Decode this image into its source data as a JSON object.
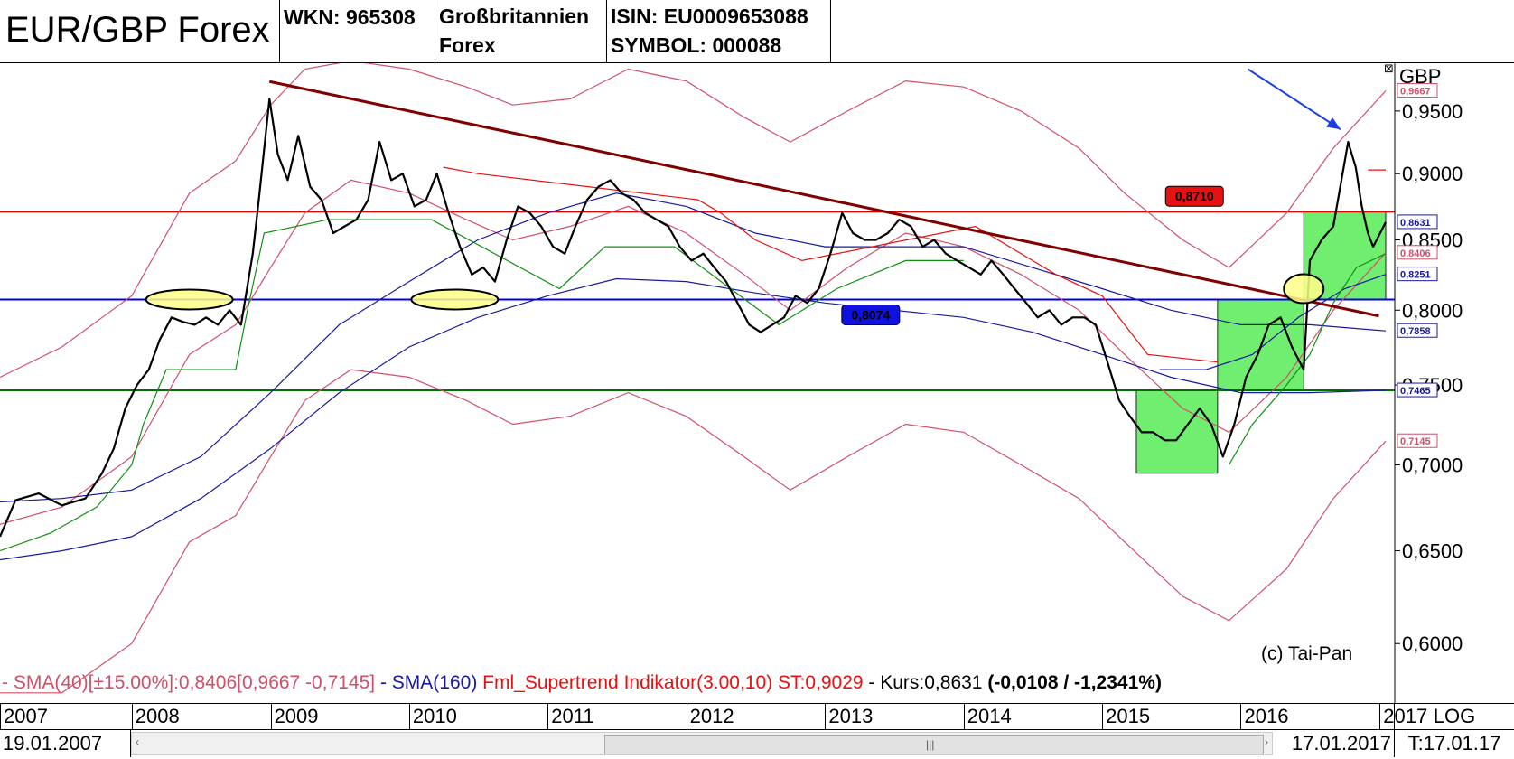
{
  "header": {
    "title": "EUR/GBP Forex",
    "wkn": "WKN: 965308",
    "market_line1": "Großbritannien",
    "market_line2": "Forex",
    "isin": "ISIN: EU0009653088",
    "symbol": "SYMBOL: 000088"
  },
  "axis": {
    "currency": "GBP",
    "log_label": "LOG",
    "close_box": "⊠"
  },
  "copyright": "(c) Tai-Pan",
  "legend": {
    "sma40": "- SMA(40)[±15.00%]:0,8406[0,9667 -0,7145]",
    "sma160": " - SMA(160)",
    "supertrend": " Fml_Supertrend Indikator(3.00,10) ST:0,9029",
    "kurs": " - Kurs:0,8631 ",
    "change": "(-0,0108 / -1,2341%)"
  },
  "footer": {
    "start_date": "19.01.2007",
    "end_date": "17.01.2017",
    "t_date": "T:17.01.17",
    "grip": "|||",
    "left_arrow": "‹",
    "right_arrow": "›"
  },
  "colors": {
    "sma40": "#d0506a",
    "sma160": "#1a1aa0",
    "supertrend_red": "#e81010",
    "supertrend_green": "#109010",
    "resistance": "#e00000",
    "support_blue": "#0000e0",
    "support_green": "#007000",
    "trendline": "#800000",
    "zone": "#70ee70",
    "ellipse": "#ffff88",
    "arrow": "#1c3cf0"
  },
  "chart_data": {
    "type": "line",
    "scale": "log",
    "ylim": [
      0.57,
      0.99
    ],
    "x_range": [
      "2007-01-19",
      "2017-01-17"
    ],
    "x_ticks": [
      "2007",
      "2008",
      "2009",
      "2010",
      "2011",
      "2012",
      "2013",
      "2014",
      "2015",
      "2016",
      "2017"
    ],
    "y_ticks": [
      "0,9500",
      "0,9000",
      "0,8500",
      "0,8000",
      "0,7500",
      "0,7000",
      "0,6500",
      "0,6000"
    ],
    "y_tick_values": [
      0.95,
      0.9,
      0.85,
      0.8,
      0.75,
      0.7,
      0.65,
      0.6
    ],
    "price_labels": [
      {
        "text": "0,9667",
        "value": 0.9667,
        "color": "#d0506a"
      },
      {
        "text": "0,8631",
        "value": 0.8631,
        "color": "#1a1aa0"
      },
      {
        "text": "0,8406",
        "value": 0.8406,
        "color": "#d0506a"
      },
      {
        "text": "0,8251",
        "value": 0.8251,
        "color": "#1a1aa0"
      },
      {
        "text": "0,7858",
        "value": 0.7858,
        "color": "#1a1aa0"
      },
      {
        "text": "0,7465",
        "value": 0.7465,
        "color": "#1a1aa0"
      },
      {
        "text": "0,7145",
        "value": 0.7145,
        "color": "#d0506a"
      }
    ],
    "levels": [
      {
        "name": "resistance",
        "value": 0.871,
        "label": "0,8710"
      },
      {
        "name": "support",
        "value": 0.8074,
        "label": "0,8074"
      },
      {
        "name": "support-low",
        "value": 0.7465
      }
    ],
    "trendline": [
      [
        "2008-12-29",
        0.9745
      ],
      [
        "2016-12-30",
        0.796
      ]
    ],
    "price": [
      [
        "2007-01-19",
        0.658
      ],
      [
        "2007-03-01",
        0.679
      ],
      [
        "2007-05-01",
        0.683
      ],
      [
        "2007-07-01",
        0.676
      ],
      [
        "2007-09-01",
        0.68
      ],
      [
        "2007-10-15",
        0.695
      ],
      [
        "2007-11-15",
        0.71
      ],
      [
        "2007-12-15",
        0.735
      ],
      [
        "2008-01-15",
        0.75
      ],
      [
        "2008-02-15",
        0.76
      ],
      [
        "2008-03-15",
        0.78
      ],
      [
        "2008-04-15",
        0.795
      ],
      [
        "2008-05-15",
        0.792
      ],
      [
        "2008-06-15",
        0.79
      ],
      [
        "2008-07-15",
        0.795
      ],
      [
        "2008-08-15",
        0.79
      ],
      [
        "2008-09-15",
        0.8
      ],
      [
        "2008-10-15",
        0.79
      ],
      [
        "2008-11-15",
        0.84
      ],
      [
        "2008-12-01",
        0.88
      ],
      [
        "2008-12-29",
        0.96
      ],
      [
        "2009-01-20",
        0.915
      ],
      [
        "2009-02-15",
        0.895
      ],
      [
        "2009-03-15",
        0.93
      ],
      [
        "2009-04-15",
        0.89
      ],
      [
        "2009-05-15",
        0.88
      ],
      [
        "2009-06-15",
        0.855
      ],
      [
        "2009-07-15",
        0.86
      ],
      [
        "2009-08-15",
        0.865
      ],
      [
        "2009-09-15",
        0.88
      ],
      [
        "2009-10-15",
        0.925
      ],
      [
        "2009-11-15",
        0.895
      ],
      [
        "2009-12-15",
        0.9
      ],
      [
        "2010-01-15",
        0.875
      ],
      [
        "2010-02-15",
        0.88
      ],
      [
        "2010-03-15",
        0.9
      ],
      [
        "2010-04-15",
        0.87
      ],
      [
        "2010-05-15",
        0.845
      ],
      [
        "2010-06-15",
        0.825
      ],
      [
        "2010-07-15",
        0.83
      ],
      [
        "2010-08-15",
        0.82
      ],
      [
        "2010-09-15",
        0.85
      ],
      [
        "2010-10-15",
        0.875
      ],
      [
        "2010-11-15",
        0.87
      ],
      [
        "2010-12-15",
        0.86
      ],
      [
        "2011-01-15",
        0.845
      ],
      [
        "2011-02-15",
        0.84
      ],
      [
        "2011-03-15",
        0.86
      ],
      [
        "2011-04-15",
        0.88
      ],
      [
        "2011-05-15",
        0.89
      ],
      [
        "2011-06-15",
        0.895
      ],
      [
        "2011-07-15",
        0.885
      ],
      [
        "2011-08-15",
        0.88
      ],
      [
        "2011-09-15",
        0.87
      ],
      [
        "2011-10-15",
        0.865
      ],
      [
        "2011-11-15",
        0.86
      ],
      [
        "2011-12-15",
        0.845
      ],
      [
        "2012-01-15",
        0.835
      ],
      [
        "2012-02-15",
        0.84
      ],
      [
        "2012-03-15",
        0.83
      ],
      [
        "2012-04-15",
        0.82
      ],
      [
        "2012-05-15",
        0.805
      ],
      [
        "2012-06-15",
        0.79
      ],
      [
        "2012-07-15",
        0.785
      ],
      [
        "2012-08-15",
        0.79
      ],
      [
        "2012-09-15",
        0.795
      ],
      [
        "2012-10-15",
        0.81
      ],
      [
        "2012-11-15",
        0.805
      ],
      [
        "2012-12-15",
        0.815
      ],
      [
        "2013-01-15",
        0.84
      ],
      [
        "2013-02-15",
        0.87
      ],
      [
        "2013-03-15",
        0.855
      ],
      [
        "2013-04-15",
        0.85
      ],
      [
        "2013-05-15",
        0.85
      ],
      [
        "2013-06-15",
        0.855
      ],
      [
        "2013-07-15",
        0.865
      ],
      [
        "2013-08-15",
        0.86
      ],
      [
        "2013-09-15",
        0.845
      ],
      [
        "2013-10-15",
        0.85
      ],
      [
        "2013-11-15",
        0.84
      ],
      [
        "2013-12-15",
        0.835
      ],
      [
        "2014-01-15",
        0.83
      ],
      [
        "2014-02-15",
        0.825
      ],
      [
        "2014-03-15",
        0.835
      ],
      [
        "2014-04-15",
        0.825
      ],
      [
        "2014-05-15",
        0.815
      ],
      [
        "2014-06-15",
        0.805
      ],
      [
        "2014-07-15",
        0.795
      ],
      [
        "2014-08-15",
        0.8
      ],
      [
        "2014-09-15",
        0.79
      ],
      [
        "2014-10-15",
        0.795
      ],
      [
        "2014-11-15",
        0.795
      ],
      [
        "2014-12-15",
        0.79
      ],
      [
        "2015-01-15",
        0.765
      ],
      [
        "2015-02-15",
        0.74
      ],
      [
        "2015-03-15",
        0.73
      ],
      [
        "2015-04-15",
        0.72
      ],
      [
        "2015-05-15",
        0.72
      ],
      [
        "2015-06-15",
        0.715
      ],
      [
        "2015-07-15",
        0.715
      ],
      [
        "2015-08-15",
        0.725
      ],
      [
        "2015-09-15",
        0.735
      ],
      [
        "2015-10-15",
        0.725
      ],
      [
        "2015-11-15",
        0.705
      ],
      [
        "2015-12-15",
        0.725
      ],
      [
        "2016-01-15",
        0.755
      ],
      [
        "2016-02-15",
        0.77
      ],
      [
        "2016-03-15",
        0.79
      ],
      [
        "2016-04-15",
        0.795
      ],
      [
        "2016-05-15",
        0.775
      ],
      [
        "2016-06-15",
        0.76
      ],
      [
        "2016-07-01",
        0.835
      ],
      [
        "2016-08-01",
        0.85
      ],
      [
        "2016-09-01",
        0.86
      ],
      [
        "2016-10-10",
        0.925
      ],
      [
        "2016-10-30",
        0.905
      ],
      [
        "2016-11-15",
        0.875
      ],
      [
        "2016-12-01",
        0.855
      ],
      [
        "2016-12-15",
        0.845
      ],
      [
        "2017-01-17",
        0.8631
      ]
    ],
    "sma40": [
      [
        "2007-01-19",
        0.665
      ],
      [
        "2007-07-01",
        0.675
      ],
      [
        "2008-01-01",
        0.705
      ],
      [
        "2008-06-01",
        0.77
      ],
      [
        "2008-10-01",
        0.79
      ],
      [
        "2009-01-01",
        0.83
      ],
      [
        "2009-04-01",
        0.87
      ],
      [
        "2009-08-01",
        0.895
      ],
      [
        "2010-01-01",
        0.885
      ],
      [
        "2010-06-01",
        0.865
      ],
      [
        "2010-10-01",
        0.85
      ],
      [
        "2011-03-01",
        0.86
      ],
      [
        "2011-08-01",
        0.875
      ],
      [
        "2012-01-01",
        0.855
      ],
      [
        "2012-06-01",
        0.825
      ],
      [
        "2012-10-01",
        0.8
      ],
      [
        "2013-03-01",
        0.83
      ],
      [
        "2013-08-01",
        0.855
      ],
      [
        "2014-01-01",
        0.845
      ],
      [
        "2014-06-01",
        0.825
      ],
      [
        "2014-11-01",
        0.8
      ],
      [
        "2015-03-01",
        0.77
      ],
      [
        "2015-08-01",
        0.735
      ],
      [
        "2015-12-01",
        0.72
      ],
      [
        "2016-05-01",
        0.755
      ],
      [
        "2016-09-01",
        0.8
      ],
      [
        "2017-01-17",
        0.8406
      ]
    ],
    "sma40_upper": [
      [
        "2007-01-19",
        0.755
      ],
      [
        "2007-07-01",
        0.775
      ],
      [
        "2008-01-01",
        0.81
      ],
      [
        "2008-06-01",
        0.885
      ],
      [
        "2008-10-01",
        0.91
      ],
      [
        "2009-01-01",
        0.955
      ],
      [
        "2009-04-01",
        0.985
      ],
      [
        "2009-08-01",
        0.992
      ],
      [
        "2010-01-01",
        0.985
      ],
      [
        "2010-06-01",
        0.97
      ],
      [
        "2010-10-01",
        0.955
      ],
      [
        "2011-03-01",
        0.96
      ],
      [
        "2011-08-01",
        0.985
      ],
      [
        "2012-01-01",
        0.975
      ],
      [
        "2012-06-01",
        0.945
      ],
      [
        "2012-10-01",
        0.925
      ],
      [
        "2013-03-01",
        0.95
      ],
      [
        "2013-08-01",
        0.975
      ],
      [
        "2014-01-01",
        0.97
      ],
      [
        "2014-06-01",
        0.95
      ],
      [
        "2014-11-01",
        0.92
      ],
      [
        "2015-03-01",
        0.885
      ],
      [
        "2015-08-01",
        0.85
      ],
      [
        "2015-12-01",
        0.83
      ],
      [
        "2016-05-01",
        0.87
      ],
      [
        "2016-09-01",
        0.92
      ],
      [
        "2017-01-17",
        0.9667
      ]
    ],
    "sma40_lower": [
      [
        "2007-01-19",
        0.575
      ],
      [
        "2007-07-01",
        0.575
      ],
      [
        "2008-01-01",
        0.6
      ],
      [
        "2008-06-01",
        0.655
      ],
      [
        "2008-10-01",
        0.67
      ],
      [
        "2009-01-01",
        0.705
      ],
      [
        "2009-04-01",
        0.74
      ],
      [
        "2009-08-01",
        0.76
      ],
      [
        "2010-01-01",
        0.755
      ],
      [
        "2010-06-01",
        0.74
      ],
      [
        "2010-10-01",
        0.725
      ],
      [
        "2011-03-01",
        0.73
      ],
      [
        "2011-08-01",
        0.745
      ],
      [
        "2012-01-01",
        0.73
      ],
      [
        "2012-06-01",
        0.705
      ],
      [
        "2012-10-01",
        0.685
      ],
      [
        "2013-03-01",
        0.705
      ],
      [
        "2013-08-01",
        0.725
      ],
      [
        "2014-01-01",
        0.72
      ],
      [
        "2014-06-01",
        0.7
      ],
      [
        "2014-11-01",
        0.68
      ],
      [
        "2015-03-01",
        0.655
      ],
      [
        "2015-08-01",
        0.625
      ],
      [
        "2015-12-01",
        0.612
      ],
      [
        "2016-05-01",
        0.64
      ],
      [
        "2016-09-01",
        0.68
      ],
      [
        "2017-01-17",
        0.7145
      ]
    ],
    "sma160_a": [
      [
        "2007-01-19",
        0.678
      ],
      [
        "2007-07-01",
        0.68
      ],
      [
        "2008-01-01",
        0.685
      ],
      [
        "2008-07-01",
        0.705
      ],
      [
        "2009-01-01",
        0.745
      ],
      [
        "2009-07-01",
        0.79
      ],
      [
        "2010-01-01",
        0.82
      ],
      [
        "2010-07-01",
        0.85
      ],
      [
        "2011-01-01",
        0.87
      ],
      [
        "2011-07-01",
        0.885
      ],
      [
        "2012-01-01",
        0.875
      ],
      [
        "2012-07-01",
        0.855
      ],
      [
        "2013-01-01",
        0.845
      ],
      [
        "2013-07-01",
        0.845
      ],
      [
        "2014-01-01",
        0.845
      ],
      [
        "2014-07-01",
        0.83
      ],
      [
        "2015-01-01",
        0.815
      ],
      [
        "2015-07-01",
        0.8
      ],
      [
        "2016-01-01",
        0.79
      ],
      [
        "2016-07-01",
        0.79
      ],
      [
        "2017-01-17",
        0.7858
      ]
    ],
    "sma160_b": [
      [
        "2007-01-19",
        0.645
      ],
      [
        "2007-07-01",
        0.65
      ],
      [
        "2008-01-01",
        0.658
      ],
      [
        "2008-07-01",
        0.68
      ],
      [
        "2009-01-01",
        0.71
      ],
      [
        "2009-07-01",
        0.745
      ],
      [
        "2010-01-01",
        0.775
      ],
      [
        "2010-07-01",
        0.795
      ],
      [
        "2011-01-01",
        0.81
      ],
      [
        "2011-07-01",
        0.822
      ],
      [
        "2012-01-01",
        0.82
      ],
      [
        "2012-07-01",
        0.812
      ],
      [
        "2013-01-01",
        0.805
      ],
      [
        "2013-07-01",
        0.8
      ],
      [
        "2014-01-01",
        0.795
      ],
      [
        "2014-07-01",
        0.785
      ],
      [
        "2015-01-01",
        0.77
      ],
      [
        "2015-07-01",
        0.755
      ],
      [
        "2016-01-01",
        0.745
      ],
      [
        "2016-07-01",
        0.745
      ],
      [
        "2017-01-17",
        0.7465
      ]
    ],
    "sma160_c": [
      [
        "2015-06-01",
        0.76
      ],
      [
        "2015-10-01",
        0.76
      ],
      [
        "2016-02-01",
        0.77
      ],
      [
        "2016-06-01",
        0.795
      ],
      [
        "2016-10-01",
        0.815
      ],
      [
        "2017-01-17",
        0.8251
      ]
    ],
    "supertrend_green": [
      [
        "2007-01-19",
        0.65
      ],
      [
        "2007-06-01",
        0.66
      ],
      [
        "2007-10-01",
        0.675
      ],
      [
        "2008-01-01",
        0.7
      ],
      [
        "2008-02-01",
        0.725
      ],
      [
        "2008-04-01",
        0.76
      ],
      [
        "2008-10-01",
        0.76
      ],
      [
        "2008-11-01",
        0.8
      ],
      [
        "2008-12-15",
        0.855
      ],
      [
        "2009-06-01",
        0.865
      ],
      [
        "2010-03-01",
        0.865
      ],
      [
        "2011-02-01",
        0.815
      ],
      [
        "2011-06-01",
        0.845
      ],
      [
        "2011-12-01",
        0.845
      ],
      [
        "2012-09-01",
        0.79
      ],
      [
        "2013-02-01",
        0.815
      ],
      [
        "2013-08-01",
        0.835
      ],
      [
        "2014-01-01",
        0.835
      ]
    ],
    "supertrend_red": [
      [
        "2010-04-01",
        0.905
      ],
      [
        "2010-07-01",
        0.9
      ],
      [
        "2012-02-01",
        0.88
      ],
      [
        "2012-04-01",
        0.87
      ],
      [
        "2012-07-01",
        0.85
      ],
      [
        "2012-11-01",
        0.835
      ],
      [
        "2014-02-01",
        0.86
      ],
      [
        "2014-09-01",
        0.825
      ],
      [
        "2015-01-01",
        0.81
      ],
      [
        "2015-05-01",
        0.77
      ],
      [
        "2015-11-01",
        0.765
      ]
    ],
    "supertrend_green2": [
      [
        "2015-12-01",
        0.7
      ],
      [
        "2016-02-01",
        0.725
      ],
      [
        "2016-05-01",
        0.75
      ],
      [
        "2016-07-01",
        0.77
      ],
      [
        "2016-09-01",
        0.805
      ],
      [
        "2016-11-01",
        0.83
      ],
      [
        "2017-01-17",
        0.84
      ]
    ],
    "supertrend_tick": [
      [
        "2016-12-01",
        0.9029
      ],
      [
        "2017-01-17",
        0.9029
      ]
    ],
    "zones": [
      {
        "x0": "2015-04-01",
        "x1": "2015-11-01",
        "y0": 0.695,
        "y1": 0.7465
      },
      {
        "x0": "2015-11-01",
        "x1": "2016-06-15",
        "y0": 0.7465,
        "y1": 0.8074
      },
      {
        "x0": "2016-06-15",
        "x1": "2017-01-17",
        "y0": 0.8074,
        "y1": 0.871
      }
    ],
    "ellipses": [
      {
        "x": "2008-06-01",
        "y": 0.8074
      },
      {
        "x": "2010-05-01",
        "y": 0.8074
      },
      {
        "x": "2016-06-15",
        "y": 0.815
      }
    ],
    "arrow": {
      "from": [
        "2016-01-20",
        0.985
      ],
      "to": [
        "2016-09-20",
        0.935
      ]
    }
  }
}
